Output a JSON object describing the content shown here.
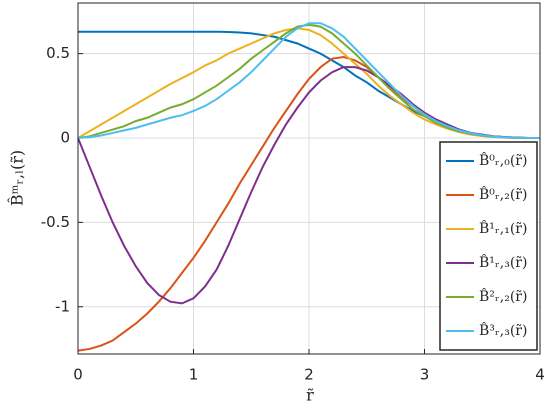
{
  "chart_data": {
    "type": "line",
    "xlabel": "r̃",
    "ylabel": "B̂ᵐᵣ,ₗ(r̃)",
    "x": [
      0,
      0.1,
      0.2,
      0.3,
      0.4,
      0.5,
      0.6,
      0.7,
      0.8,
      0.9,
      1,
      1.1,
      1.2,
      1.3,
      1.4,
      1.5,
      1.6,
      1.7,
      1.8,
      1.9,
      2,
      2.1,
      2.2,
      2.3,
      2.4,
      2.5,
      2.6,
      2.7,
      2.8,
      2.9,
      3,
      3.1,
      3.2,
      3.3,
      3.4,
      3.5,
      3.6,
      3.7,
      3.8,
      3.9,
      4
    ],
    "series": [
      {
        "name": "B̂⁰ᵣ,₀(r̃)",
        "color": "#0072BD",
        "values": [
          0.63,
          0.63,
          0.63,
          0.63,
          0.63,
          0.63,
          0.63,
          0.63,
          0.63,
          0.63,
          0.63,
          0.63,
          0.63,
          0.628,
          0.625,
          0.62,
          0.61,
          0.6,
          0.58,
          0.56,
          0.53,
          0.5,
          0.46,
          0.42,
          0.37,
          0.33,
          0.28,
          0.24,
          0.2,
          0.16,
          0.13,
          0.1,
          0.07,
          0.05,
          0.03,
          0.02,
          0.01,
          0.005,
          0.002,
          0,
          0
        ]
      },
      {
        "name": "B̂⁰ᵣ,₂(r̃)",
        "color": "#D95319",
        "values": [
          -1.26,
          -1.25,
          -1.23,
          -1.2,
          -1.15,
          -1.1,
          -1.04,
          -0.97,
          -0.89,
          -0.8,
          -0.71,
          -0.61,
          -0.5,
          -0.39,
          -0.27,
          -0.16,
          -0.05,
          0.06,
          0.16,
          0.26,
          0.35,
          0.42,
          0.47,
          0.48,
          0.46,
          0.42,
          0.36,
          0.3,
          0.24,
          0.19,
          0.14,
          0.1,
          0.07,
          0.04,
          0.03,
          0.015,
          0.008,
          0.003,
          0.001,
          0,
          0
        ]
      },
      {
        "name": "B̂¹ᵣ,₁(r̃)",
        "color": "#EDB120",
        "values": [
          0,
          0.04,
          0.08,
          0.12,
          0.16,
          0.2,
          0.24,
          0.28,
          0.32,
          0.355,
          0.39,
          0.43,
          0.46,
          0.5,
          0.53,
          0.56,
          0.59,
          0.62,
          0.64,
          0.65,
          0.64,
          0.61,
          0.56,
          0.5,
          0.44,
          0.38,
          0.31,
          0.25,
          0.2,
          0.15,
          0.11,
          0.08,
          0.055,
          0.035,
          0.02,
          0.012,
          0.006,
          0.003,
          0.001,
          0,
          0
        ]
      },
      {
        "name": "B̂¹ᵣ,₃(r̃)",
        "color": "#7E2F8E",
        "values": [
          0,
          -0.17,
          -0.34,
          -0.5,
          -0.64,
          -0.76,
          -0.86,
          -0.93,
          -0.97,
          -0.98,
          -0.95,
          -0.88,
          -0.78,
          -0.64,
          -0.48,
          -0.32,
          -0.17,
          -0.04,
          0.08,
          0.18,
          0.27,
          0.34,
          0.39,
          0.42,
          0.42,
          0.4,
          0.36,
          0.31,
          0.26,
          0.2,
          0.15,
          0.11,
          0.08,
          0.05,
          0.03,
          0.018,
          0.01,
          0.005,
          0.002,
          0,
          0
        ]
      },
      {
        "name": "B̂²ᵣ,₂(r̃)",
        "color": "#77AC30",
        "values": [
          0,
          0.01,
          0.03,
          0.05,
          0.07,
          0.1,
          0.12,
          0.15,
          0.18,
          0.2,
          0.23,
          0.27,
          0.31,
          0.36,
          0.41,
          0.47,
          0.52,
          0.57,
          0.62,
          0.66,
          0.67,
          0.66,
          0.62,
          0.56,
          0.5,
          0.43,
          0.36,
          0.29,
          0.23,
          0.17,
          0.13,
          0.09,
          0.06,
          0.04,
          0.025,
          0.014,
          0.007,
          0.003,
          0.001,
          0,
          0
        ]
      },
      {
        "name": "B̂³ᵣ,₃(r̃)",
        "color": "#4DBEEE",
        "values": [
          0,
          0.005,
          0.015,
          0.03,
          0.045,
          0.06,
          0.08,
          0.1,
          0.12,
          0.135,
          0.16,
          0.19,
          0.23,
          0.28,
          0.33,
          0.39,
          0.46,
          0.53,
          0.6,
          0.65,
          0.68,
          0.68,
          0.65,
          0.6,
          0.53,
          0.46,
          0.39,
          0.32,
          0.25,
          0.19,
          0.14,
          0.1,
          0.07,
          0.045,
          0.028,
          0.016,
          0.008,
          0.004,
          0.001,
          0,
          0
        ]
      }
    ],
    "xlim": [
      0,
      4
    ],
    "ylim": [
      -1.28,
      0.8
    ],
    "xticks": [
      0,
      1,
      2,
      3,
      4
    ],
    "yticks": [
      -1,
      -0.5,
      0,
      0.5
    ],
    "grid": true,
    "legend": "southeast"
  }
}
